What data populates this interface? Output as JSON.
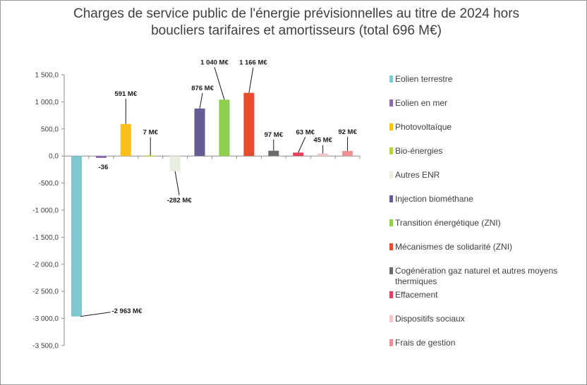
{
  "chart_data": {
    "type": "bar",
    "title_line1": "Charges de service public de l'énergie prévisionnelles au titre de 2024 hors",
    "title_line2": "boucliers tarifaires et amortisseurs (total 696 M€)",
    "ylim": [
      -3500,
      1500
    ],
    "yticks": [
      1500,
      1000,
      500,
      0,
      -500,
      -1000,
      -1500,
      -2000,
      -2500,
      -3000,
      -3500
    ],
    "ytick_labels": [
      "1 500,0",
      "1 000,0",
      "500,0",
      "0,0",
      "-500,0",
      "-1 000,0",
      "-1 500,0",
      "-2 000,0",
      "-2 500,0",
      "-3 000,0",
      "-3 500,0"
    ],
    "grid": false,
    "legend_position": "right",
    "categories": [
      {
        "name": "Eolien terrestre",
        "value": -2963,
        "label": "-2 963 M€",
        "color": "#7ec8cf"
      },
      {
        "name": "Eolien en mer",
        "value": -36,
        "label": "-36",
        "color": "#8b6aa8"
      },
      {
        "name": "Photovoltaïque",
        "value": 591,
        "label": "591 M€",
        "color": "#fbbf1a"
      },
      {
        "name": "Bio-énergies",
        "value": 7,
        "label": "7 M€",
        "color": "#b5d33d"
      },
      {
        "name": "Autres ENR",
        "value": -282,
        "label": "-282 M€",
        "color": "#e9efe0"
      },
      {
        "name": "Injection biométhane",
        "value": 876,
        "label": "876 M€",
        "color": "#665b93"
      },
      {
        "name": "Transition énergétique (ZNI)",
        "value": 1040,
        "label": "1 040 M€",
        "color": "#8fcf4e"
      },
      {
        "name": "Mécanismes de solidarité (ZNI)",
        "value": 1166,
        "label": "1 166 M€",
        "color": "#e84c2b"
      },
      {
        "name": "Cogénération gaz naturel et autres moyens thermiques",
        "value": 97,
        "label": "97 M€",
        "color": "#6b6b6b"
      },
      {
        "name": "Effacement",
        "value": 63,
        "label": "63 M€",
        "color": "#e2405c"
      },
      {
        "name": "Dispositifs sociaux",
        "value": 45,
        "label": "45 M€",
        "color": "#f6c6c8"
      },
      {
        "name": "Frais de gestion",
        "value": 92,
        "label": "92 M€",
        "color": "#ef8f93"
      }
    ],
    "legend_lines": [
      [
        "Eolien terrestre"
      ],
      [
        "Eolien en mer"
      ],
      [
        "Photovoltaïque"
      ],
      [
        "Bio-énergies"
      ],
      [
        "Autres ENR"
      ],
      [
        "Injection biométhane"
      ],
      [
        "Transition énergétique (ZNI)"
      ],
      [
        "Mécanismes de solidarité (ZNI)"
      ],
      [
        "Cogénération gaz naturel et autres moyens",
        "thermiques"
      ],
      [
        "Effacement"
      ],
      [
        "Dispositifs sociaux"
      ],
      [
        "Frais de gestion"
      ]
    ]
  }
}
